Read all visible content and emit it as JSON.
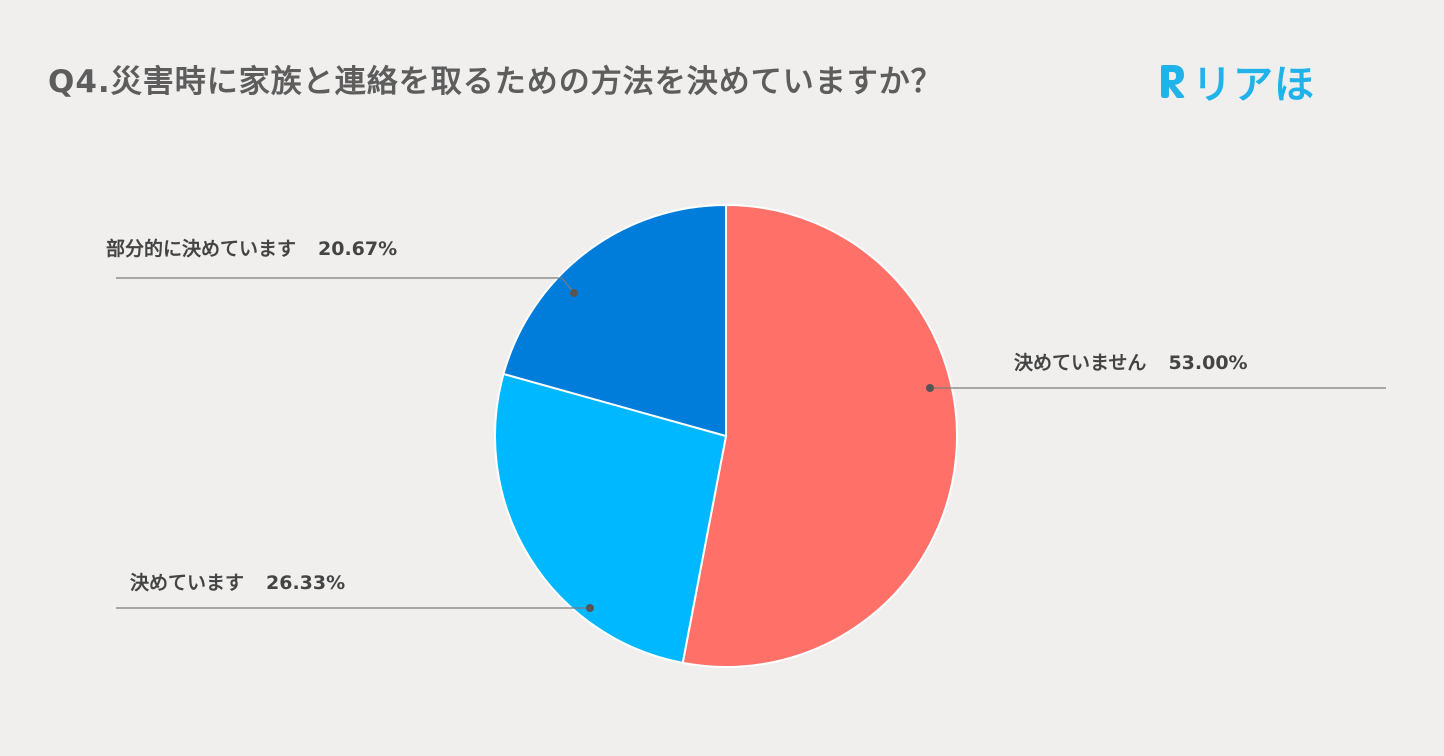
{
  "title": "Q4.災害時に家族と連絡を取るための方法を決めていますか？",
  "logo": {
    "text": "リアほ",
    "icon": "r-letter-icon",
    "color": "#1fb3ea"
  },
  "chart_data": {
    "type": "pie",
    "title": "Q4.災害時に家族と連絡を取るための方法を決めていますか？",
    "start_angle_deg": 0,
    "direction": "clockwise",
    "slices": [
      {
        "label": "決めていません",
        "value": 53.0,
        "value_text": "53.00%",
        "color": "#ff7069"
      },
      {
        "label": "決めています",
        "value": 26.33,
        "value_text": "26.33%",
        "color": "#00b8ff"
      },
      {
        "label": "部分的に決めています",
        "value": 20.67,
        "value_text": "20.67%",
        "color": "#007ddb"
      }
    ],
    "legend": "none",
    "labels": "outside-with-leader-lines"
  }
}
